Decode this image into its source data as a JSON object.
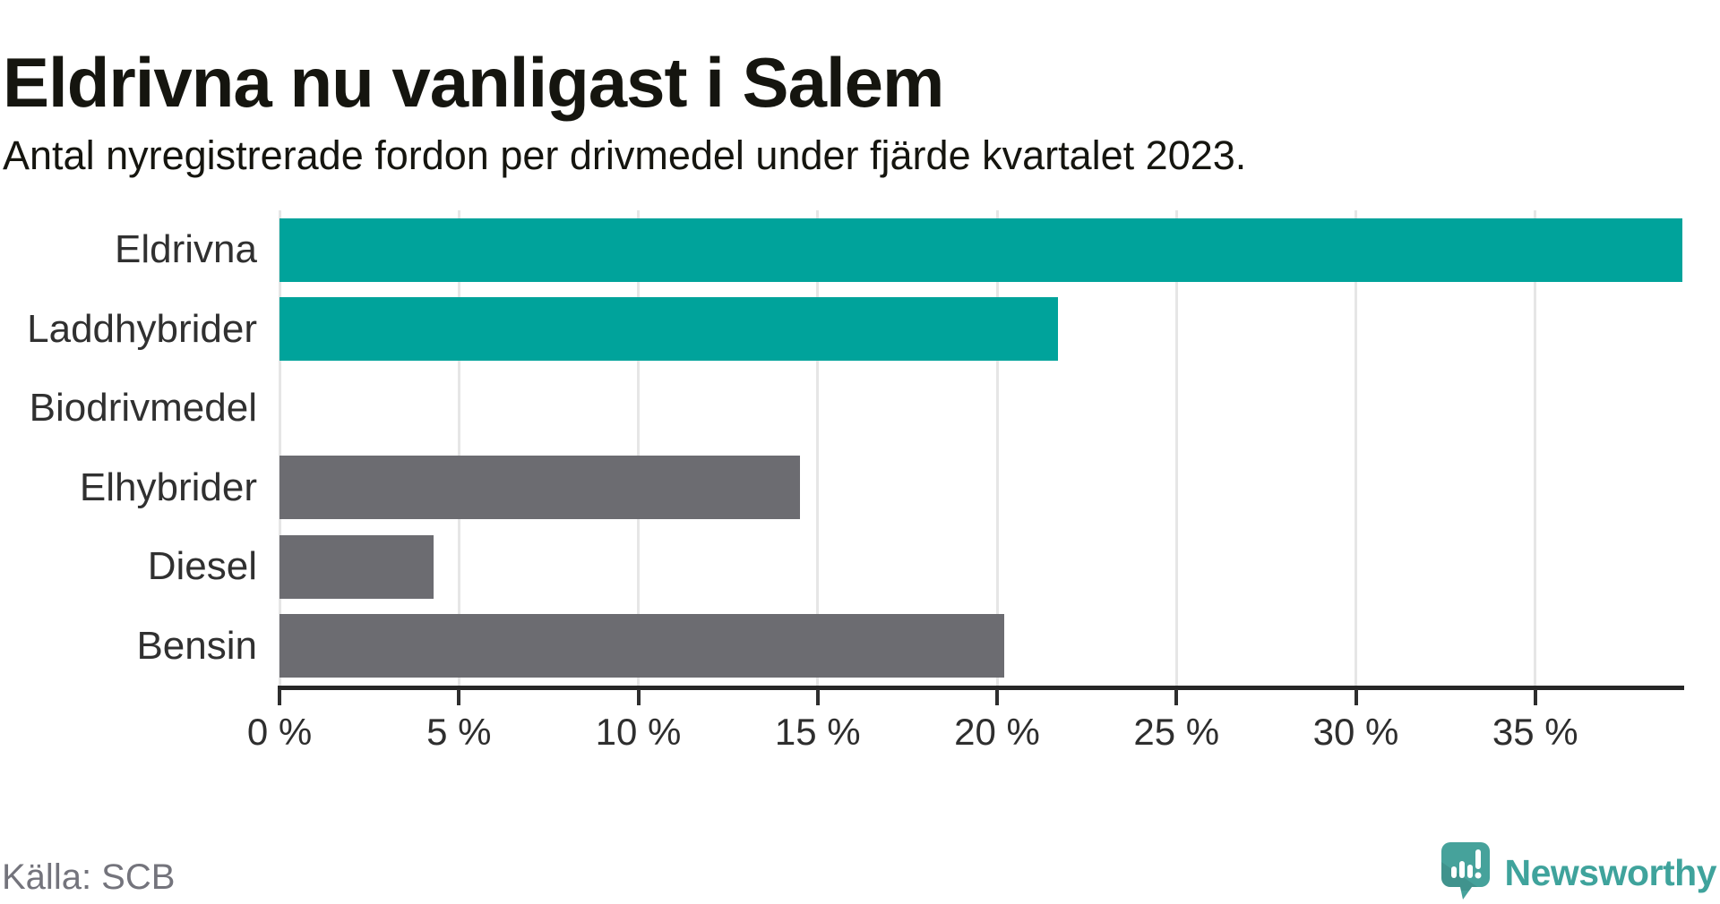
{
  "header": {
    "title": "Eldrivna nu vanligast i Salem",
    "subtitle": "Antal nyregistrerade fordon per drivmedel under fjärde kvartalet 2023."
  },
  "footer": {
    "source": "Källa: SCB",
    "brand": "Newsworthy"
  },
  "colors": {
    "highlight_bar": "#00a39b",
    "default_bar": "#6c6c71",
    "gridline": "#e6e6e6",
    "axis": "#262626",
    "tick": "#2e2e2e",
    "text": "#15150f",
    "label": "#303030",
    "source_text": "#74747c",
    "brand_teal": "#3fa39c",
    "logo_teal": "#46a29b"
  },
  "chart_data": {
    "type": "bar",
    "orientation": "horizontal",
    "title": "Eldrivna nu vanligast i Salem",
    "subtitle": "Antal nyregistrerade fordon per drivmedel under fjärde kvartalet 2023.",
    "categories": [
      "Eldrivna",
      "Laddhybrider",
      "Biodrivmedel",
      "Elhybrider",
      "Diesel",
      "Bensin"
    ],
    "values": [
      39.1,
      21.7,
      0,
      14.5,
      4.3,
      20.2
    ],
    "unit": "%",
    "highlighted": [
      true,
      true,
      false,
      false,
      false,
      false
    ],
    "xlabel": "",
    "ylabel": "",
    "xlim": [
      0,
      39.1
    ],
    "x_ticks": [
      0,
      5,
      10,
      15,
      20,
      25,
      30,
      35
    ],
    "x_tick_labels": [
      "0 %",
      "5 %",
      "10 %",
      "15 %",
      "20 %",
      "25 %",
      "30 %",
      "35 %"
    ],
    "grid": "vertical-only",
    "legend": "none",
    "bar_value_labels": "none"
  }
}
